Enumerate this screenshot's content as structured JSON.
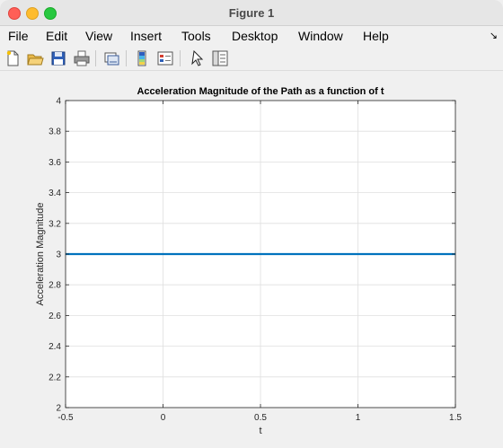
{
  "window": {
    "title": "Figure 1"
  },
  "menu": {
    "items": [
      "File",
      "Edit",
      "View",
      "Insert",
      "Tools",
      "Desktop",
      "Window",
      "Help"
    ],
    "overflow_icon": "chevron-icon"
  },
  "toolbar": {
    "icons": [
      "new-figure-icon",
      "open-file-icon",
      "save-icon",
      "print-icon",
      "link-plot-icon",
      "colorbar-icon",
      "legend-icon",
      "edit-plot-arrow-icon",
      "property-inspector-icon"
    ]
  },
  "chart_data": {
    "type": "line",
    "title": "Acceleration Magnitude of the Path as a function of t",
    "xlabel": "t",
    "ylabel": "Acceleration Magnitude",
    "xlim": [
      -0.5,
      1.5
    ],
    "ylim": [
      2,
      4
    ],
    "xticks": [
      "-0.5",
      "0",
      "0.5",
      "1",
      "1.5"
    ],
    "yticks": [
      "2",
      "2.2",
      "2.4",
      "2.6",
      "2.8",
      "3",
      "3.2",
      "3.4",
      "3.6",
      "3.8",
      "4"
    ],
    "grid": true,
    "series": [
      {
        "color": "#0072bd",
        "x": [
          -0.5,
          1.5
        ],
        "y": [
          3,
          3
        ]
      }
    ]
  }
}
